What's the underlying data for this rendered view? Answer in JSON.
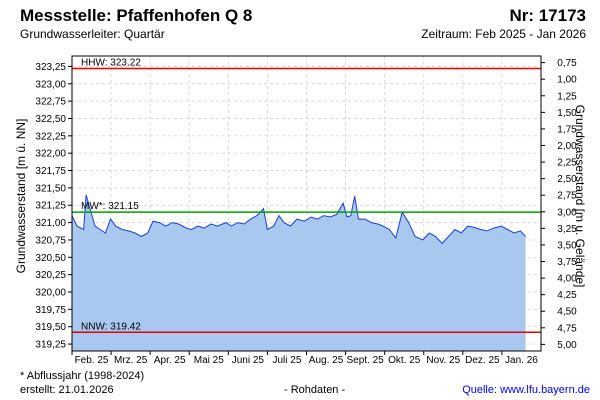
{
  "header": {
    "station": "Messstelle: Pfaffenhofen Q 8",
    "number": "Nr: 17173",
    "aquifer": "Grundwasserleiter: Quartär",
    "period": "Zeitraum: Feb 2025 - Jan 2026"
  },
  "footer": {
    "note": "* Abflussjahr (1998-2024)",
    "created": "erstellt:  21.01.2026",
    "raw": "- Rohdaten -",
    "source_label": "Quelle:",
    "source_link": "www.lfu.bayern.de"
  },
  "colors": {
    "area": "#a8c8f0",
    "line": "#1a3fd6",
    "hhw": "#e00000",
    "mw": "#00a000",
    "nnw": "#e00000",
    "grid": "#cccccc"
  },
  "chart_data": {
    "type": "area",
    "ylabel_left": "Grundwasserstand [m ü. NN]",
    "ylabel_right": "Grundwasserstand [m u. Gelände]",
    "ylim": [
      319.15,
      323.4
    ],
    "ylim_right": [
      0.65,
      5.1
    ],
    "yticks_left": [
      "323,25",
      "323,00",
      "322,75",
      "322,50",
      "322,25",
      "322,00",
      "321,75",
      "321,50",
      "321,25",
      "321,00",
      "320,75",
      "320,50",
      "320,25",
      "320,00",
      "319,75",
      "319,50",
      "319,25"
    ],
    "yticks_right": [
      "0,75",
      "1,00",
      "1,25",
      "1,50",
      "1,75",
      "2,00",
      "2,25",
      "2,50",
      "2,75",
      "3,00",
      "3,25",
      "3,50",
      "3,75",
      "4,00",
      "4,25",
      "4,50",
      "4,75",
      "5,00"
    ],
    "xticks": [
      "Feb. 25",
      "Mrz. 25",
      "Apr. 25",
      "Mai 25",
      "Juni 25",
      "Juli 25",
      "Aug. 25",
      "Sept. 25",
      "Okt. 25",
      "Nov. 25",
      "Dez. 25",
      "Jan. 26"
    ],
    "grid": true,
    "reference_lines": [
      {
        "label": "HHW: 323.22",
        "value": 323.22
      },
      {
        "label": "MW*: 321.15",
        "value": 321.15
      },
      {
        "label": "NNW: 319.42",
        "value": 319.42
      }
    ],
    "series": [
      {
        "x": [
          "2025-02-01",
          "2025-02-05",
          "2025-02-10",
          "2025-02-12",
          "2025-02-15",
          "2025-02-19",
          "2025-02-23",
          "2025-02-27",
          "2025-03-03",
          "2025-03-07",
          "2025-03-12",
          "2025-03-17",
          "2025-03-22",
          "2025-03-27",
          "2025-04-01",
          "2025-04-05",
          "2025-04-10",
          "2025-04-15",
          "2025-04-20",
          "2025-04-25",
          "2025-05-01",
          "2025-05-05",
          "2025-05-10",
          "2025-05-15",
          "2025-05-20",
          "2025-05-25",
          "2025-06-01",
          "2025-06-05",
          "2025-06-10",
          "2025-06-15",
          "2025-06-20",
          "2025-06-25",
          "2025-06-30",
          "2025-07-03",
          "2025-07-08",
          "2025-07-12",
          "2025-07-16",
          "2025-07-21",
          "2025-07-26",
          "2025-08-01",
          "2025-08-06",
          "2025-08-11",
          "2025-08-16",
          "2025-08-21",
          "2025-08-26",
          "2025-08-31",
          "2025-09-03",
          "2025-09-06",
          "2025-09-09",
          "2025-09-12",
          "2025-09-17",
          "2025-09-22",
          "2025-09-27",
          "2025-10-01",
          "2025-10-06",
          "2025-10-11",
          "2025-10-16",
          "2025-10-21",
          "2025-10-26",
          "2025-11-01",
          "2025-11-06",
          "2025-11-11",
          "2025-11-16",
          "2025-11-21",
          "2025-11-26",
          "2025-12-01",
          "2025-12-06",
          "2025-12-11",
          "2025-12-16",
          "2025-12-21",
          "2025-12-26",
          "2026-01-01",
          "2026-01-06",
          "2026-01-11",
          "2026-01-16",
          "2026-01-20"
        ],
        "values": [
          321.1,
          320.95,
          320.9,
          321.4,
          321.2,
          320.95,
          320.9,
          320.85,
          321.05,
          320.95,
          320.9,
          320.88,
          320.85,
          320.8,
          320.85,
          321.02,
          321.0,
          320.95,
          321.0,
          320.98,
          320.92,
          320.9,
          320.95,
          320.92,
          320.98,
          320.95,
          321.0,
          320.95,
          321.0,
          320.98,
          321.05,
          321.1,
          321.2,
          320.9,
          320.95,
          321.1,
          321.0,
          320.95,
          321.05,
          321.02,
          321.08,
          321.05,
          321.1,
          321.08,
          321.12,
          321.28,
          321.08,
          321.1,
          321.38,
          321.05,
          321.05,
          321.0,
          320.98,
          320.95,
          320.9,
          320.78,
          321.15,
          321.0,
          320.8,
          320.75,
          320.85,
          320.8,
          320.7,
          320.8,
          320.9,
          320.85,
          320.95,
          320.93,
          320.9,
          320.88,
          320.92,
          320.95,
          320.9,
          320.85,
          320.88,
          320.8
        ]
      }
    ]
  }
}
